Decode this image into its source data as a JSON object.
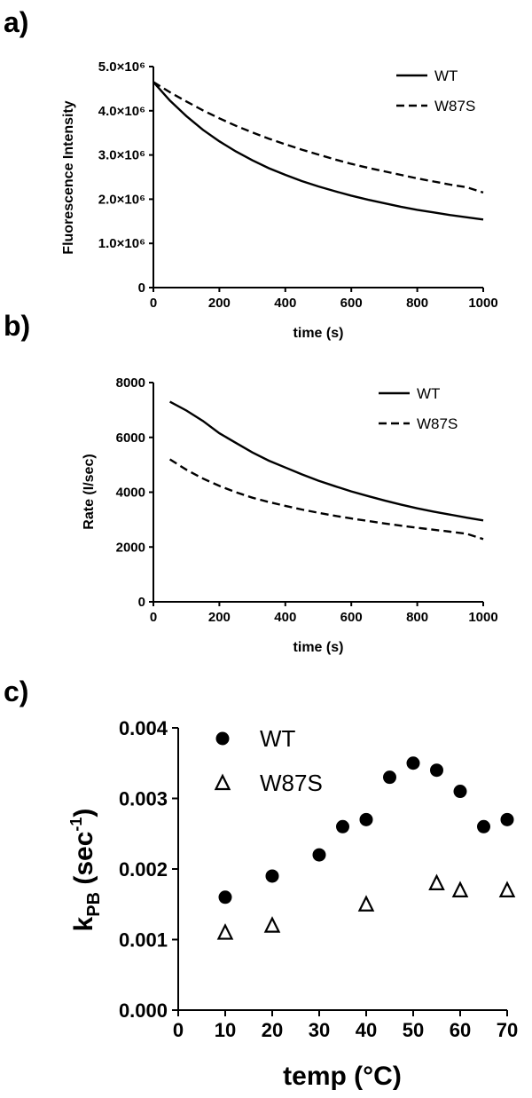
{
  "panels": {
    "a": "a)",
    "b": "b)",
    "c": "c)"
  },
  "chart_data": [
    {
      "type": "line",
      "panel": "a)",
      "xlabel": "time (s)",
      "ylabel": "Fluorescence Intensity",
      "xlim": [
        0,
        1000
      ],
      "ylim": [
        0,
        5000000
      ],
      "xticks": [
        0,
        200,
        400,
        600,
        800,
        1000
      ],
      "xtick_labels": [
        "0",
        "200",
        "400",
        "600",
        "800",
        "1000"
      ],
      "yticks": [
        0,
        1000000,
        2000000,
        3000000,
        4000000,
        5000000
      ],
      "ytick_labels": [
        "0",
        "1.0×10⁶",
        "2.0×10⁶",
        "3.0×10⁶",
        "4.0×10⁶",
        "5.0×10⁶"
      ],
      "grid": false,
      "legend_position": "top-right",
      "series": [
        {
          "name": "WT",
          "style": "solid",
          "x": [
            0,
            50,
            100,
            150,
            200,
            250,
            300,
            350,
            400,
            450,
            500,
            550,
            600,
            650,
            700,
            750,
            800,
            850,
            900,
            950,
            1000
          ],
          "y": [
            4650000,
            4230000,
            3880000,
            3570000,
            3310000,
            3080000,
            2880000,
            2700000,
            2550000,
            2410000,
            2290000,
            2180000,
            2080000,
            1990000,
            1910000,
            1830000,
            1760000,
            1700000,
            1640000,
            1590000,
            1540000
          ]
        },
        {
          "name": "W87S",
          "style": "dashed",
          "x": [
            0,
            50,
            100,
            150,
            200,
            250,
            300,
            350,
            400,
            450,
            500,
            550,
            600,
            650,
            700,
            750,
            800,
            850,
            900,
            950,
            1000
          ],
          "y": [
            4650000,
            4420000,
            4210000,
            4010000,
            3830000,
            3660000,
            3510000,
            3370000,
            3240000,
            3120000,
            3010000,
            2900000,
            2800000,
            2710000,
            2630000,
            2550000,
            2470000,
            2400000,
            2330000,
            2270000,
            2150000
          ]
        }
      ]
    },
    {
      "type": "line",
      "panel": "b)",
      "xlabel": "time (s)",
      "ylabel": "Rate (I/sec)",
      "xlim": [
        0,
        1000
      ],
      "ylim": [
        0,
        8000
      ],
      "xticks": [
        0,
        200,
        400,
        600,
        800,
        1000
      ],
      "xtick_labels": [
        "0",
        "200",
        "400",
        "600",
        "800",
        "1000"
      ],
      "yticks": [
        0,
        2000,
        4000,
        6000,
        8000
      ],
      "ytick_labels": [
        "0",
        "2000",
        "4000",
        "6000",
        "8000"
      ],
      "grid": false,
      "legend_position": "top-right",
      "series": [
        {
          "name": "WT",
          "style": "solid",
          "x": [
            50,
            100,
            150,
            200,
            250,
            300,
            350,
            400,
            450,
            500,
            550,
            600,
            650,
            700,
            750,
            800,
            850,
            900,
            950,
            1000
          ],
          "y": [
            7300,
            6980,
            6600,
            6150,
            5800,
            5450,
            5150,
            4900,
            4650,
            4420,
            4220,
            4030,
            3860,
            3700,
            3550,
            3410,
            3290,
            3180,
            3070,
            2970
          ]
        },
        {
          "name": "W87S",
          "style": "dashed",
          "x": [
            50,
            100,
            150,
            200,
            250,
            300,
            350,
            400,
            450,
            500,
            550,
            600,
            650,
            700,
            750,
            800,
            850,
            900,
            950,
            1000
          ],
          "y": [
            5200,
            4820,
            4500,
            4230,
            4000,
            3800,
            3640,
            3500,
            3370,
            3250,
            3140,
            3040,
            2950,
            2860,
            2780,
            2700,
            2630,
            2560,
            2480,
            2290
          ]
        }
      ]
    },
    {
      "type": "scatter",
      "panel": "c)",
      "xlabel": "temp (°C)",
      "ylabel_main": "k",
      "ylabel_sub": "PB",
      "ylabel_unit": " (sec",
      "ylabel_sup": "-1",
      "ylabel_end": ")",
      "xlim": [
        0,
        70
      ],
      "ylim": [
        0,
        0.004
      ],
      "xticks": [
        0,
        10,
        20,
        30,
        40,
        50,
        60,
        70
      ],
      "xtick_labels": [
        "0",
        "10",
        "20",
        "30",
        "40",
        "50",
        "60",
        "70"
      ],
      "yticks": [
        0,
        0.001,
        0.002,
        0.003,
        0.004
      ],
      "ytick_labels": [
        "0.000",
        "0.001",
        "0.002",
        "0.003",
        "0.004"
      ],
      "grid": false,
      "legend_position": "top-left",
      "series": [
        {
          "name": "WT",
          "marker": "filled-circle",
          "x": [
            10,
            20,
            30,
            35,
            40,
            45,
            50,
            55,
            60,
            65,
            70
          ],
          "y": [
            0.0016,
            0.0019,
            0.0022,
            0.0026,
            0.0027,
            0.0033,
            0.0035,
            0.0034,
            0.0031,
            0.0026,
            0.0027
          ]
        },
        {
          "name": "W87S",
          "marker": "open-triangle",
          "x": [
            10,
            20,
            40,
            55,
            60,
            70
          ],
          "y": [
            0.0011,
            0.0012,
            0.0015,
            0.0018,
            0.0017,
            0.0017
          ]
        }
      ]
    }
  ]
}
